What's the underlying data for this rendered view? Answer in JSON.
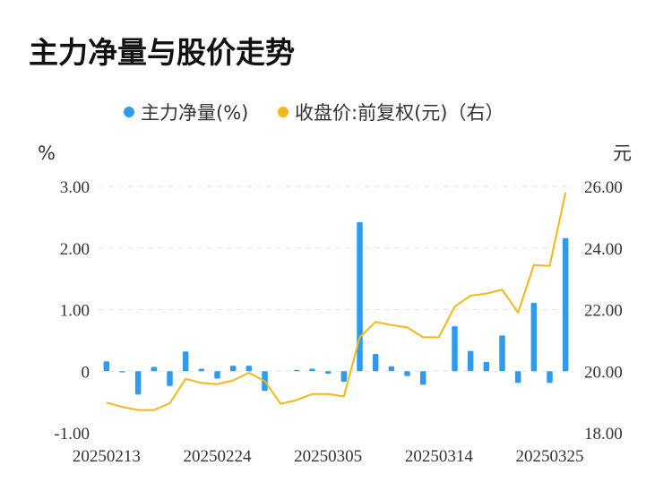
{
  "chart_data": {
    "type": "bar+line",
    "title": "主力净量与股价走势",
    "legend": [
      {
        "name": "主力净量(%)",
        "color": "#2e9bee",
        "marker": "dot"
      },
      {
        "name": "收盘价:前复权(元)（右）",
        "color": "#f5b718",
        "marker": "dot"
      }
    ],
    "legend_placement": "top-center",
    "left_unit": "%",
    "right_unit": "元",
    "left_axis": {
      "min": -1.0,
      "max": 3.0,
      "ticks": [
        "-1.00",
        "0",
        "1.00",
        "2.00",
        "3.00"
      ],
      "tick_values": [
        -1,
        0,
        1,
        2,
        3
      ]
    },
    "right_axis": {
      "min": 18.0,
      "max": 26.0,
      "ticks": [
        "18.00",
        "20.00",
        "22.00",
        "24.00",
        "26.00"
      ],
      "tick_values": [
        18,
        20,
        22,
        24,
        26
      ]
    },
    "x_tick_labels": [
      "20250213",
      "20250224",
      "20250305",
      "20250314",
      "20250325"
    ],
    "x_tick_indices": [
      0,
      7,
      14,
      21,
      28
    ],
    "grid": "horizontal-dashed",
    "series": [
      {
        "name": "主力净量(%)",
        "type": "bar",
        "color": "#2e9bee",
        "values": [
          0.16,
          -0.02,
          -0.38,
          0.07,
          -0.24,
          0.32,
          0.04,
          -0.12,
          0.09,
          0.09,
          -0.32,
          0.0,
          0.02,
          0.04,
          -0.04,
          -0.17,
          2.42,
          0.28,
          0.08,
          -0.08,
          -0.22,
          0.0,
          0.73,
          0.33,
          0.15,
          0.58,
          -0.19,
          1.11,
          -0.19,
          2.16
        ]
      },
      {
        "name": "收盘价:前复权(元)（右）",
        "type": "line",
        "color": "#f5b718",
        "values": [
          18.98,
          18.84,
          18.74,
          18.74,
          18.96,
          19.75,
          19.62,
          19.58,
          19.7,
          19.95,
          19.68,
          18.94,
          19.06,
          19.26,
          19.26,
          19.18,
          21.1,
          21.6,
          21.5,
          21.42,
          21.1,
          21.1,
          22.1,
          22.45,
          22.52,
          22.65,
          21.9,
          23.45,
          23.42,
          25.8
        ]
      }
    ]
  }
}
